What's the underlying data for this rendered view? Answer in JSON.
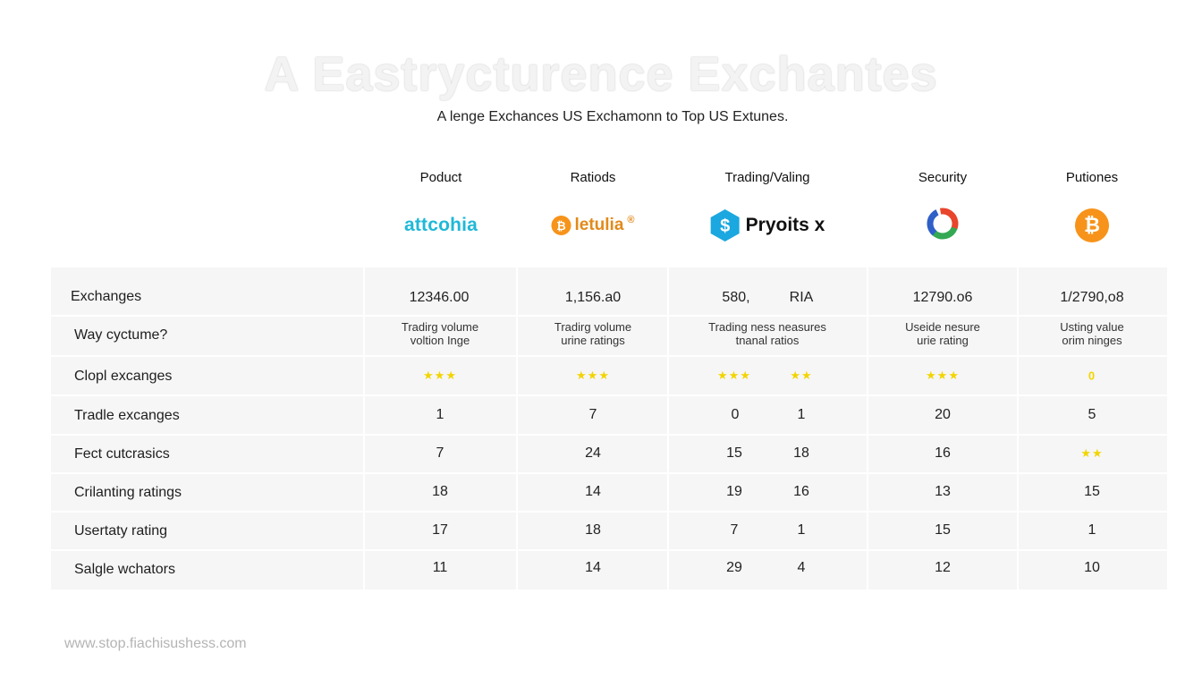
{
  "title": "A Eastrycturence Exchantes",
  "subtitle": "A lenge Exchances US Exchamonn to Top US Extunes.",
  "columns": [
    "Poduct",
    "Ratiods",
    "Trading/Valing",
    "Security",
    "Putiones"
  ],
  "logos": {
    "logo1": "attcohia",
    "logo2": "letulia",
    "logo2_mark": "®",
    "logo3": "Pryoits x",
    "logo3_mark": "$",
    "logo5": "₿",
    "logo2_coin": "₿"
  },
  "rows": [
    {
      "label": "Exchanges",
      "cells": [
        "12346.00",
        "1,156.a0",
        "580,",
        "RIA",
        "12790.o6",
        "1/2790,o8"
      ]
    },
    {
      "label": "Way cyctume?",
      "cells": [
        "Tradirg volume\nvoltion Inge",
        "Tradirg volume\nurine ratings",
        "Trading ness neasures\ntnanal ratios",
        "Useide nesure\nurie rating",
        "Usting value\norim ninges"
      ]
    },
    {
      "label": "Clopl excanges",
      "cells": [
        "★★★",
        "★★★",
        "★★★",
        "★★",
        "★★★",
        "0"
      ]
    },
    {
      "label": "Tradle excanges",
      "cells": [
        "1",
        "7",
        "0",
        "1",
        "20",
        "5"
      ]
    },
    {
      "label": "Fect cutcrasics",
      "cells": [
        "7",
        "24",
        "15",
        "18",
        "16",
        "★★"
      ]
    },
    {
      "label": "Crilanting ratings",
      "cells": [
        "18",
        "14",
        "19",
        "16",
        "13",
        "15"
      ]
    },
    {
      "label": "Usertaty rating",
      "cells": [
        "17",
        "18",
        "7",
        "1",
        "15",
        "1"
      ]
    },
    {
      "label": "Salgle wchators",
      "cells": [
        "11",
        "14",
        "29",
        "4",
        "12",
        "10"
      ]
    }
  ],
  "footer": "www.stop.fiachisushess.com",
  "colors": {
    "stars": "#f2d400",
    "accent_cyan": "#1fb8d8",
    "bitcoin": "#f7931a"
  }
}
